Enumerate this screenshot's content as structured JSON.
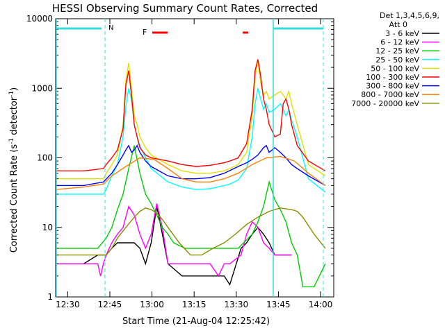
{
  "chart_data": {
    "type": "line",
    "title": "HESSI Observing Summary Count Rates, Corrected",
    "xlabel": "Start Time (21-Aug-04 12:25:42)",
    "ylabel": "Corrected Count Rate (s⁻¹ detector⁻¹)",
    "ylabel_main": "Corrected Count Rate (s",
    "ylabel_sup1": "-1",
    "ylabel_mid": " detector",
    "ylabel_sup2": "-1",
    "ylabel_end": ")",
    "x_unit": "minutes after 12:25:42",
    "xlim": [
      0,
      99
    ],
    "ylim": [
      1,
      10000
    ],
    "y_scale": "log",
    "x_ticks": [
      {
        "x": 4.3,
        "label": "12:30"
      },
      {
        "x": 19.3,
        "label": "12:45"
      },
      {
        "x": 34.3,
        "label": "13:00"
      },
      {
        "x": 49.3,
        "label": "13:15"
      },
      {
        "x": 64.3,
        "label": "13:30"
      },
      {
        "x": 79.3,
        "label": "13:45"
      },
      {
        "x": 94.3,
        "label": "14:00"
      }
    ],
    "y_ticks": [
      {
        "y": 1,
        "label": "1"
      },
      {
        "y": 10,
        "label": "10"
      },
      {
        "y": 100,
        "label": "100"
      },
      {
        "y": 1000,
        "label": "1000"
      },
      {
        "y": 10000,
        "label": "10000"
      }
    ],
    "legend_header": [
      "Det 1,3,4,5,6,9,",
      "Att 0"
    ],
    "legend_placement": "right",
    "series": [
      {
        "name": "3 - 6 keV",
        "color": "#000000",
        "x": [
          0,
          10,
          15,
          18,
          20,
          22,
          24,
          26,
          28,
          30,
          32,
          34,
          36,
          38,
          40,
          45,
          50,
          55,
          60,
          62,
          66,
          68,
          70,
          72,
          74,
          76,
          78,
          80,
          82,
          84
        ],
        "y": [
          3,
          3,
          4,
          4,
          5,
          6,
          6,
          6,
          6,
          5,
          3,
          6,
          20,
          8,
          3,
          2,
          2,
          2,
          2,
          1.5,
          5,
          6,
          8,
          10,
          8,
          6,
          4,
          4,
          4,
          4
        ]
      },
      {
        "name": "6 - 12 keV",
        "color": "#ff00ff",
        "x": [
          0,
          15,
          16,
          17,
          18,
          20,
          22,
          24,
          26,
          28,
          30,
          32,
          34,
          36,
          38,
          40,
          45,
          50,
          55,
          58,
          60,
          62,
          66,
          68,
          70,
          72,
          74,
          76,
          78,
          80,
          82,
          84
        ],
        "y": [
          3,
          3,
          2,
          3,
          4,
          6,
          8,
          10,
          20,
          15,
          8,
          5,
          8,
          22,
          10,
          3,
          3,
          3,
          3,
          2,
          3,
          3,
          4,
          8,
          12,
          10,
          6,
          5,
          4,
          4,
          4,
          4
        ]
      },
      {
        "name": "12 - 25 keV",
        "color": "#00cc00",
        "x": [
          0,
          10,
          15,
          18,
          20,
          22,
          24,
          26,
          28,
          30,
          32,
          34,
          36,
          38,
          40,
          42,
          46,
          50,
          55,
          60,
          65,
          70,
          72,
          74,
          76,
          78,
          80,
          82,
          84,
          86,
          88,
          92,
          96
        ],
        "y": [
          5,
          5,
          5,
          7,
          10,
          18,
          30,
          70,
          150,
          60,
          30,
          22,
          15,
          10,
          8,
          6,
          5,
          5,
          5,
          5,
          5,
          8,
          12,
          20,
          45,
          25,
          18,
          12,
          6,
          4,
          1.4,
          1.4,
          3
        ]
      },
      {
        "name": "25 - 50 keV",
        "color": "#00ffff",
        "x": [
          0,
          10,
          17,
          18,
          20,
          22,
          24,
          25,
          26,
          27,
          28,
          29,
          30,
          32,
          34,
          40,
          45,
          50,
          55,
          60,
          62,
          65,
          68,
          70,
          71,
          72,
          73,
          74,
          75,
          76,
          78,
          80,
          81,
          82,
          83,
          84,
          86,
          90,
          96
        ],
        "y": [
          30,
          30,
          30,
          35,
          55,
          80,
          200,
          550,
          1000,
          700,
          300,
          200,
          150,
          100,
          70,
          45,
          38,
          35,
          36,
          40,
          42,
          48,
          70,
          200,
          600,
          1000,
          700,
          500,
          600,
          450,
          500,
          600,
          500,
          400,
          500,
          350,
          200,
          50,
          32
        ]
      },
      {
        "name": "50 - 100 keV",
        "color": "#e0e000",
        "x": [
          0,
          10,
          17,
          18,
          20,
          22,
          24,
          25,
          26,
          27,
          28,
          29,
          30,
          32,
          34,
          40,
          45,
          50,
          55,
          60,
          62,
          65,
          68,
          70,
          71,
          72,
          73,
          74,
          75,
          76,
          78,
          80,
          81,
          82,
          83,
          84,
          86,
          90,
          96
        ],
        "y": [
          50,
          50,
          50,
          60,
          80,
          110,
          300,
          1300,
          2300,
          1000,
          400,
          300,
          200,
          140,
          110,
          80,
          65,
          60,
          60,
          65,
          70,
          80,
          120,
          400,
          1500,
          2400,
          1200,
          800,
          900,
          700,
          800,
          900,
          800,
          700,
          900,
          600,
          300,
          80,
          55
        ]
      },
      {
        "name": "100 - 300 keV",
        "color": "#ff0000",
        "x": [
          0,
          10,
          17,
          18,
          20,
          22,
          24,
          25,
          26,
          27,
          28,
          29,
          30,
          32,
          34,
          40,
          45,
          50,
          55,
          60,
          62,
          65,
          68,
          70,
          71,
          72,
          73,
          74,
          75,
          76,
          78,
          80,
          81,
          82,
          83,
          84,
          86,
          90,
          96
        ],
        "y": [
          65,
          65,
          70,
          80,
          100,
          130,
          260,
          1100,
          1800,
          800,
          300,
          200,
          140,
          110,
          100,
          90,
          80,
          75,
          78,
          85,
          90,
          100,
          160,
          500,
          1800,
          2600,
          1500,
          700,
          500,
          300,
          200,
          220,
          600,
          700,
          500,
          300,
          150,
          90,
          65
        ]
      },
      {
        "name": "300 - 800 keV",
        "color": "#0000ff",
        "x": [
          0,
          10,
          17,
          20,
          22,
          24,
          25,
          26,
          27,
          28,
          29,
          30,
          32,
          34,
          40,
          45,
          50,
          55,
          60,
          65,
          68,
          70,
          72,
          74,
          75,
          76,
          78,
          80,
          82,
          84,
          86,
          90,
          96
        ],
        "y": [
          40,
          40,
          45,
          60,
          80,
          110,
          130,
          150,
          120,
          130,
          150,
          120,
          90,
          75,
          55,
          50,
          50,
          52,
          60,
          75,
          85,
          95,
          110,
          140,
          150,
          120,
          140,
          120,
          100,
          80,
          70,
          55,
          40
        ]
      },
      {
        "name": "800 - 7000 keV",
        "color": "#ff8000",
        "x": [
          0,
          10,
          17,
          20,
          25,
          30,
          35,
          40,
          45,
          50,
          55,
          60,
          65,
          70,
          75,
          80,
          85,
          90,
          96
        ],
        "y": [
          35,
          38,
          42,
          55,
          75,
          100,
          95,
          70,
          50,
          45,
          45,
          50,
          60,
          80,
          100,
          105,
          90,
          60,
          40
        ]
      },
      {
        "name": "7000 - 20000 keV",
        "color": "#8b8b00",
        "x": [
          0,
          10,
          15,
          18,
          20,
          22,
          25,
          28,
          30,
          32,
          34,
          36,
          38,
          40,
          44,
          48,
          52,
          56,
          60,
          64,
          68,
          72,
          76,
          80,
          84,
          86,
          88,
          92,
          96
        ],
        "y": [
          4,
          4,
          4,
          4,
          5,
          7,
          10,
          14,
          17,
          19,
          18,
          16,
          13,
          10,
          6,
          4,
          4,
          5,
          6,
          8,
          11,
          14,
          17,
          19,
          18,
          17,
          14,
          8,
          5
        ]
      }
    ],
    "annotations": {
      "n_label": "N",
      "f_label": "F"
    }
  }
}
